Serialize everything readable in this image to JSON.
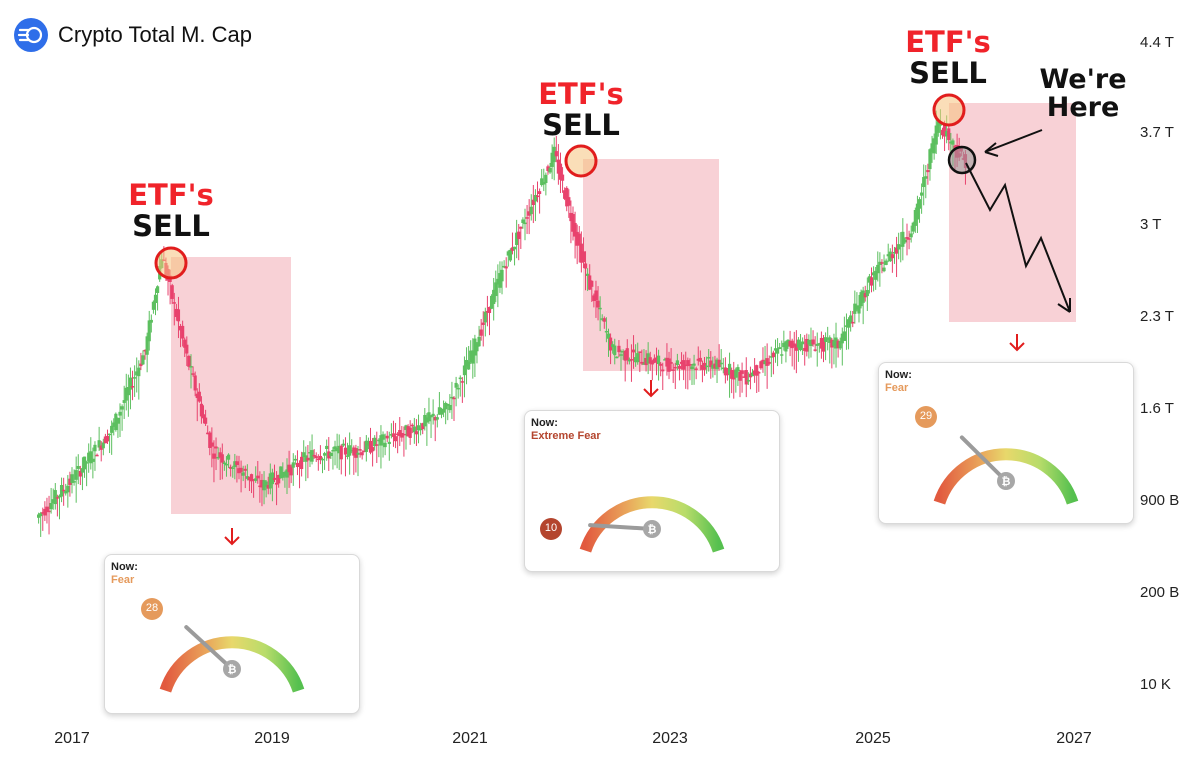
{
  "header": {
    "title": "Crypto Total M. Cap",
    "logo_icon": "coin-stack-icon"
  },
  "chart_data": {
    "type": "candlestick",
    "title": "Crypto Total M. Cap",
    "x_axis": {
      "ticks": [
        "2017",
        "2019",
        "2021",
        "2023",
        "2025",
        "2027"
      ]
    },
    "y_axis": {
      "ticks": [
        "4.4 T",
        "3.7 T",
        "3 T",
        "2.3 T",
        "1.6 T",
        "900 B",
        "200 B",
        "10 K"
      ],
      "side": "right"
    },
    "colors": {
      "up": "#5cbf5f",
      "down": "#e8426d",
      "zone": "#f7c9cf",
      "annotation": "#e11d1d"
    },
    "series_path": [
      [
        "2016-09",
        0.78
      ],
      [
        "2017-01",
        1.05
      ],
      [
        "2017-06",
        1.45
      ],
      [
        "2017-10",
        2.05
      ],
      [
        "2017-12",
        2.78
      ],
      [
        "2018-03",
        2.0
      ],
      [
        "2018-06",
        1.3
      ],
      [
        "2018-12",
        1.02
      ],
      [
        "2019-06",
        1.26
      ],
      [
        "2019-12",
        1.3
      ],
      [
        "2020-06",
        1.45
      ],
      [
        "2020-10",
        1.6
      ],
      [
        "2021-01",
        2.0
      ],
      [
        "2021-05",
        2.7
      ],
      [
        "2021-11",
        3.55
      ],
      [
        "2022-03",
        2.6
      ],
      [
        "2022-06",
        2.05
      ],
      [
        "2022-12",
        1.95
      ],
      [
        "2023-06",
        1.95
      ],
      [
        "2023-10",
        1.85
      ],
      [
        "2024-03",
        2.1
      ],
      [
        "2024-09",
        2.1
      ],
      [
        "2025-01",
        2.6
      ],
      [
        "2025-06",
        3.0
      ],
      [
        "2025-09",
        3.8
      ],
      [
        "2025-12",
        3.5
      ]
    ],
    "annotations": [
      {
        "top": "ETF's",
        "bottom": "SELL",
        "date": "2017-12"
      },
      {
        "top": "ETF's",
        "bottom": "SELL",
        "date": "2021-11"
      },
      {
        "top": "ETF's",
        "bottom": "SELL",
        "date": "2025-09"
      }
    ],
    "current_marker": {
      "label": "We're Here",
      "date": "2025-12"
    },
    "projection": "zigzag-down-arrow"
  },
  "gauges": [
    {
      "now_label": "Now:",
      "mood": "Fear",
      "value": 28,
      "mood_color": "#e59a5c",
      "badge_color": "#e59a5c"
    },
    {
      "now_label": "Now:",
      "mood": "Extreme Fear",
      "value": 10,
      "mood_color": "#b4452e",
      "badge_color": "#b4452e"
    },
    {
      "now_label": "Now:",
      "mood": "Fear",
      "value": 29,
      "mood_color": "#e59a5c",
      "badge_color": "#e59a5c"
    }
  ],
  "gauge_max": 100,
  "gauge_center_icon": "bitcoin-icon"
}
